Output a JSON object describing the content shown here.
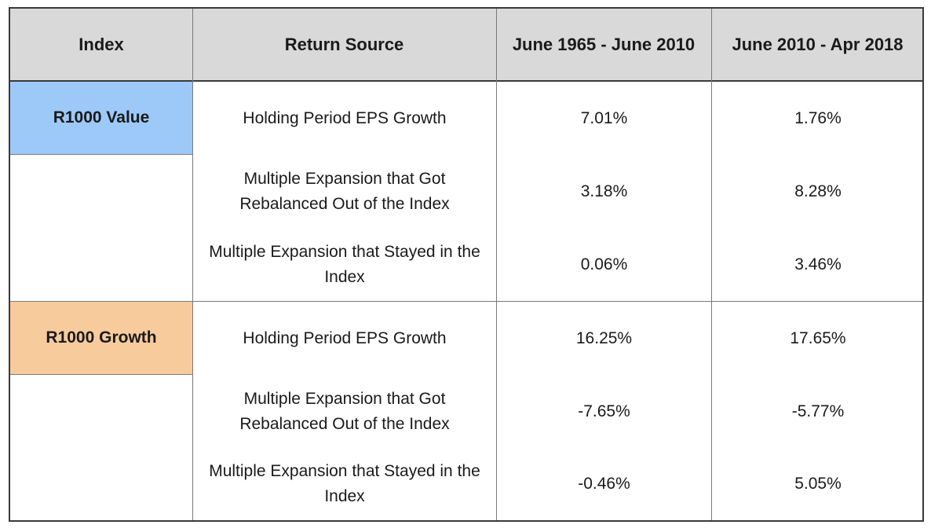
{
  "header": {
    "col_index": "Index",
    "col_source": "Return Source",
    "col_period1": "June 1965 - June 2010",
    "col_period2": "June 2010 - Apr 2018"
  },
  "colors": {
    "header_bg": "#d9d9d9",
    "value_bg": "#9dc9f9",
    "growth_bg": "#f8cb9d"
  },
  "groups": [
    {
      "index": "R1000 Value",
      "rows": [
        {
          "source": "Holding Period EPS Growth",
          "p1": "7.01%",
          "p2": "1.76%"
        },
        {
          "source": "Multiple Expansion that Got Rebalanced Out of the Index",
          "p1": "3.18%",
          "p2": "8.28%"
        },
        {
          "source": "Multiple Expansion that Stayed in the Index",
          "p1": "0.06%",
          "p2": "3.46%"
        }
      ]
    },
    {
      "index": "R1000 Growth",
      "rows": [
        {
          "source": "Holding Period EPS Growth",
          "p1": "16.25%",
          "p2": "17.65%"
        },
        {
          "source": "Multiple Expansion that Got Rebalanced Out of the Index",
          "p1": "-7.65%",
          "p2": "-5.77%"
        },
        {
          "source": "Multiple Expansion that Stayed in the Index",
          "p1": "-0.46%",
          "p2": "5.05%"
        }
      ]
    }
  ]
}
